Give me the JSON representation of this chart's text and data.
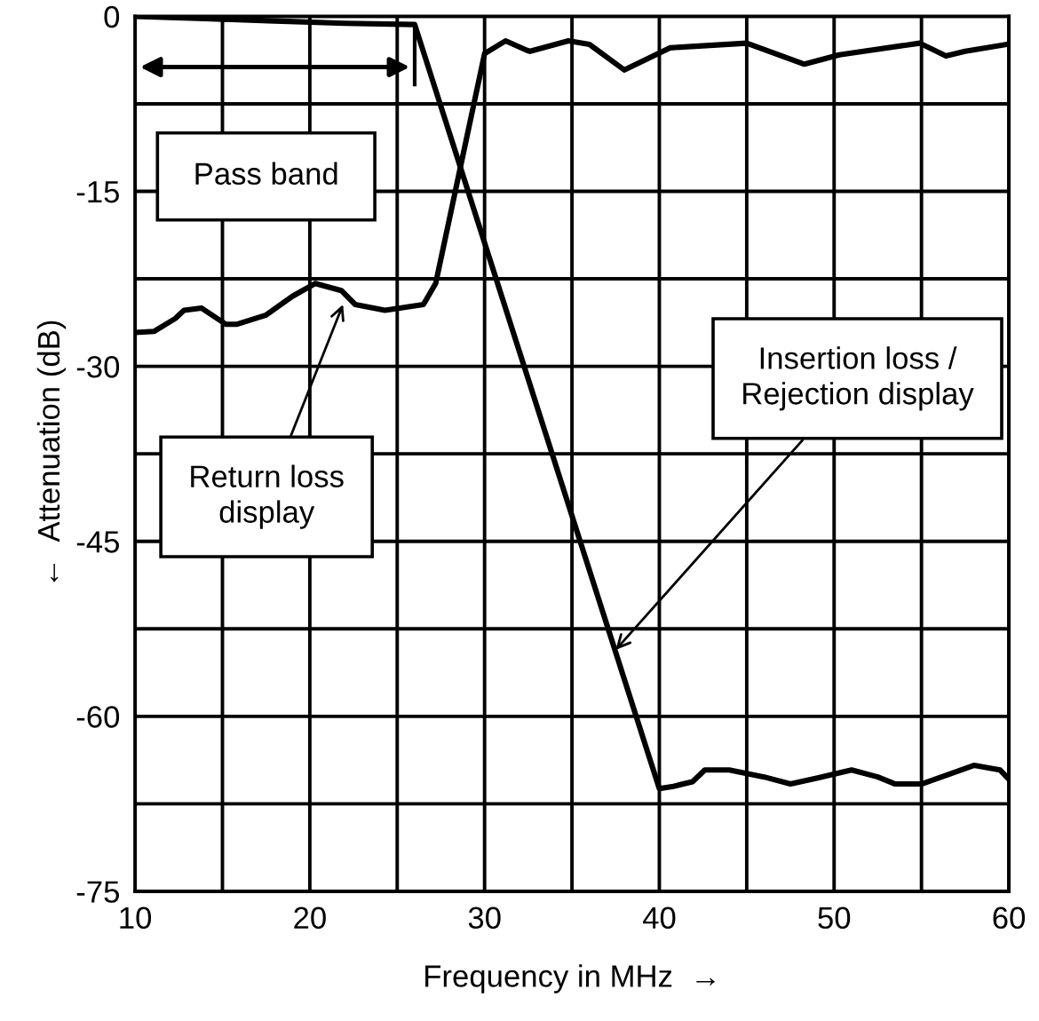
{
  "chart_data": {
    "type": "line",
    "xlabel": "Frequency in MHz  →",
    "ylabel": "←  Attenuation (dB)",
    "xlim": [
      10,
      60
    ],
    "ylim": [
      -75,
      0
    ],
    "xticks": [
      10,
      {
        "value": 15,
        "label": null
      },
      20,
      {
        "value": 25,
        "label": null
      },
      30,
      {
        "value": 35,
        "label": null
      },
      40,
      {
        "value": 45,
        "label": null
      },
      50,
      {
        "value": 55,
        "label": null
      },
      60
    ],
    "yticks": [
      -75,
      {
        "value": -67.5,
        "label": null
      },
      -60,
      {
        "value": -52.5,
        "label": null
      },
      -45,
      {
        "value": -37.5,
        "label": null
      },
      -30,
      {
        "value": -22.5,
        "label": null
      },
      -15,
      {
        "value": -7.5,
        "label": null
      },
      0
    ],
    "grid": true,
    "marker": "none",
    "line_style": "solid",
    "series": [
      {
        "color": "#000000",
        "x": [
          10,
          14,
          18,
          22,
          26,
          40,
          40.8,
          41.9,
          42.6,
          44,
          46,
          47.5,
          49,
          51,
          52.5,
          53.5,
          55,
          56.5,
          58,
          59.5,
          60
        ],
        "values": [
          0,
          -0.2,
          -0.4,
          -0.6,
          -0.7,
          -66.2,
          -66,
          -65.6,
          -64.6,
          -64.6,
          -65.2,
          -65.8,
          -65.3,
          -64.6,
          -65.2,
          -65.8,
          -65.8,
          -65,
          -64.2,
          -64.6,
          -65.4
        ]
      },
      {
        "color": "#000000",
        "x": [
          10,
          11.1,
          12.3,
          12.8,
          13.8,
          15.2,
          15.8,
          17.5,
          19,
          20.3,
          21.8,
          22.6,
          24.3,
          26.5,
          27.2,
          30,
          31.2,
          32.4,
          32.6,
          34.8,
          36,
          38,
          40.6,
          45,
          48.3,
          50.3,
          54.9,
          56.4,
          57.5,
          59.9
        ],
        "values": [
          -27.1,
          -27,
          -25.9,
          -25.2,
          -25,
          -26.4,
          -26.4,
          -25.6,
          -24,
          -22.9,
          -23.5,
          -24.7,
          -25.2,
          -24.7,
          -22.9,
          -3.2,
          -2.1,
          -2.9,
          -3,
          -2.1,
          -2.4,
          -4.6,
          -2.7,
          -2.3,
          -4.1,
          -3.3,
          -2.3,
          -3.4,
          -3,
          -2.4
        ]
      }
    ],
    "annotations": [
      "Pass band",
      {
        "text": "Return loss\ndisplay",
        "x": 21.9,
        "y": -24.7
      },
      {
        "text": "Insertion loss /\nRejection display",
        "x": 37.5,
        "y": -54.3
      }
    ]
  }
}
